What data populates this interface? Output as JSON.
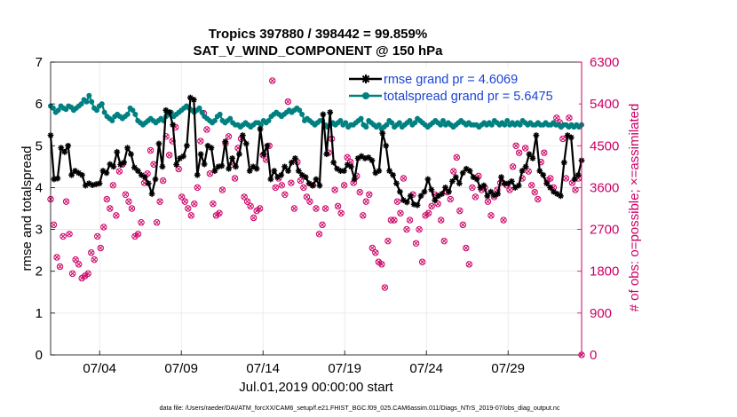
{
  "chart_data": {
    "type": "line",
    "title": "Tropics 397880 / 398442 = 99.859%",
    "subtitle": "SAT_V_WIND_COMPONENT @ 150 hPa",
    "xlabel": "Jul.01,2019 00:00:00 start",
    "ylabel": "rmse and totalspread",
    "y2label": "# of obs: o=possible; ×=assimilated",
    "xlim": [
      1,
      33.5
    ],
    "ylim": [
      0,
      7
    ],
    "y2lim": [
      0,
      6300
    ],
    "x_ticks": [
      4,
      9,
      14,
      19,
      24,
      29
    ],
    "x_tick_labels": [
      "07/04",
      "07/09",
      "07/14",
      "07/19",
      "07/24",
      "07/29"
    ],
    "y_ticks": [
      "0",
      "1",
      "2",
      "3",
      "4",
      "5",
      "6",
      "7"
    ],
    "y2_ticks": [
      "0",
      "900",
      "1800",
      "2700",
      "3600",
      "4500",
      "5400",
      "6300"
    ],
    "grid": true,
    "legend_position": "top-right",
    "colors": {
      "rmse": "#000000",
      "spread": "#008080",
      "obs": "#cc0066",
      "legend_text": "#1a44d6"
    },
    "series": [
      {
        "name": "rmse grand pr = 4.6069",
        "axis": "left",
        "y": [
          5.25,
          4.2,
          4.22,
          4.95,
          4.85,
          5.0,
          4.3,
          4.4,
          4.35,
          4.3,
          4.05,
          4.1,
          4.06,
          4.08,
          4.1,
          4.4,
          4.35,
          4.56,
          4.5,
          4.85,
          4.55,
          4.6,
          4.95,
          4.8,
          4.48,
          4.4,
          4.3,
          4.25,
          4.1,
          3.85,
          4.2,
          5.05,
          4.5,
          5.85,
          5.8,
          5.5,
          4.55,
          4.7,
          4.75,
          5.0,
          6.15,
          6.1,
          4.3,
          4.8,
          4.56,
          5.0,
          4.95,
          4.4,
          4.5,
          4.52,
          5.1,
          4.45,
          4.7,
          4.5,
          4.8,
          5.25,
          5.05,
          4.4,
          4.5,
          4.45,
          5.4,
          4.8,
          5.0,
          4.2,
          4.4,
          4.25,
          4.3,
          4.5,
          4.4,
          4.6,
          4.7,
          4.4,
          4.3,
          4.25,
          4.1,
          4.05,
          4.2,
          4.05,
          5.75,
          4.8,
          5.8,
          4.6,
          4.45,
          4.4,
          4.4,
          4.55,
          4.5,
          4.2,
          4.7,
          4.75,
          4.7,
          4.72,
          4.65,
          4.35,
          4.4,
          5.3,
          5.0,
          4.4,
          4.3,
          4.1,
          3.9,
          3.7,
          3.65,
          3.8,
          3.6,
          3.58,
          3.8,
          3.9,
          4.2,
          3.95,
          3.7,
          3.8,
          3.85,
          4.0,
          3.9,
          4.15,
          4.25,
          4.1,
          4.35,
          4.45,
          4.4,
          4.25,
          4.2,
          4.0,
          4.05,
          3.8,
          3.9,
          3.82,
          3.85,
          4.25,
          4.1,
          4.1,
          4.15,
          4.0,
          4.05,
          4.4,
          4.5,
          4.8,
          4.7,
          5.25,
          4.4,
          4.3,
          4.1,
          4.0,
          3.9,
          3.85,
          3.8,
          4.6,
          5.25,
          5.2,
          4.2,
          4.3,
          4.65
        ]
      },
      {
        "name": "totalspread grand pr = 5.6475",
        "axis": "left",
        "y": [
          5.95,
          5.9,
          5.8,
          5.85,
          5.95,
          5.9,
          5.87,
          5.95,
          5.92,
          5.85,
          5.9,
          5.95,
          6.0,
          6.1,
          6.05,
          6.2,
          6.05,
          5.9,
          5.85,
          5.95,
          6.0,
          5.8,
          5.7,
          5.65,
          5.6,
          5.7,
          5.75,
          5.7,
          5.65,
          5.7,
          5.75,
          5.9,
          5.85,
          5.75,
          5.6,
          5.55,
          5.5,
          5.55,
          5.6,
          5.65,
          5.6,
          5.55,
          5.6,
          5.65,
          5.6,
          5.7,
          5.75,
          5.8,
          5.7,
          5.75,
          5.8,
          5.85,
          5.9,
          5.95,
          5.9,
          5.85,
          5.8,
          5.85,
          5.9,
          5.8,
          5.7,
          5.65,
          5.6,
          5.55,
          5.6,
          5.7,
          5.75,
          5.6,
          5.55,
          5.6,
          5.65,
          5.55,
          5.5,
          5.5,
          5.45,
          5.5,
          5.55,
          5.5,
          5.45,
          5.5,
          5.55,
          5.55,
          5.5,
          5.6,
          5.55,
          5.6,
          5.7,
          5.75,
          5.8,
          5.75,
          5.7,
          5.75,
          5.8,
          5.85,
          5.8,
          5.85,
          5.9,
          5.85,
          5.75,
          5.6,
          5.65,
          5.6,
          5.55,
          5.5,
          5.55,
          5.6,
          5.6,
          5.5,
          5.45,
          5.5,
          5.55,
          5.5,
          5.55,
          5.6,
          5.5,
          5.55,
          5.45,
          5.5,
          5.5,
          5.55,
          5.6,
          5.65,
          5.5,
          5.45,
          5.6,
          5.55,
          5.5,
          5.45,
          5.5,
          5.4,
          5.45,
          5.5,
          5.6,
          5.55,
          5.45,
          5.5,
          5.55,
          5.45,
          5.5,
          5.55,
          5.6,
          5.5,
          5.55,
          5.65,
          5.6,
          5.55,
          5.5,
          5.45,
          5.5,
          5.55,
          5.6,
          5.55,
          5.5,
          5.6,
          5.5,
          5.55,
          5.5,
          5.45,
          5.5,
          5.55,
          5.6,
          5.55,
          5.5,
          5.55,
          5.5,
          5.5,
          5.5,
          5.45,
          5.5,
          5.55,
          5.5,
          5.55,
          5.5,
          5.6,
          5.55,
          5.5,
          5.55,
          5.5,
          5.6,
          5.5,
          5.55,
          5.5,
          5.55,
          5.5,
          5.6,
          5.55,
          5.5,
          5.55,
          5.5,
          5.5,
          5.55,
          5.5,
          5.5,
          5.55,
          5.5,
          5.5,
          5.55,
          5.5,
          5.5,
          5.45,
          5.5,
          5.5,
          5.45,
          5.5,
          5.45,
          5.5,
          5.45,
          5.5
        ]
      },
      {
        "name": "obs_possible",
        "axis": "right",
        "y": [
          3350,
          2800,
          2100,
          1900,
          2550,
          3300,
          2600,
          1750,
          2050,
          1950,
          1650,
          1700,
          1750,
          2200,
          2050,
          2550,
          2300,
          2750,
          3350,
          3150,
          3650,
          3000,
          3950,
          4100,
          3450,
          3300,
          3150,
          2550,
          2600,
          2850,
          3700,
          3900,
          4400,
          4100,
          2850,
          3300,
          3750,
          4700,
          4300,
          4600,
          4900,
          4000,
          3400,
          3300,
          3150,
          3000,
          3250,
          3600,
          4600,
          5200,
          4850,
          3900,
          3250,
          3000,
          3050,
          3550,
          4550,
          4700,
          4100,
          3800,
          4450,
          4650,
          3400,
          3300,
          3200,
          2950,
          3100,
          3150,
          4300,
          4200,
          4500,
          5900,
          3600,
          3800,
          3650,
          3450,
          5450,
          3700,
          3150,
          4150,
          3750,
          3600,
          3400,
          3300,
          3650,
          3150,
          2600,
          2800,
          3150,
          4350,
          4650,
          3550,
          3200,
          3050,
          3650,
          4250,
          4150,
          3700,
          3850,
          3500,
          3000,
          3300,
          3450,
          2300,
          2200,
          2000,
          1950,
          1450,
          2450,
          2900,
          2900,
          3300,
          3050,
          3800,
          2700,
          2900,
          3450,
          2400,
          2700,
          2000,
          3000,
          3050,
          3200,
          3450,
          3250,
          2900,
          2450,
          3500,
          3350,
          3950,
          4250,
          3100,
          2800,
          2300,
          1950,
          3600,
          3400,
          3850,
          3550,
          3600,
          3300,
          3000,
          3400,
          3550,
          3700,
          2900,
          3650,
          3550,
          4050,
          4500,
          4350,
          3800,
          4450,
          3950,
          3650,
          3500,
          3350,
          4150,
          4350,
          3750,
          3800,
          3600,
          5100,
          5000,
          4650,
          3800,
          5100,
          3700,
          3550,
          3800,
          0
        ]
      },
      {
        "name": "obs_assimilated",
        "axis": "right",
        "y": [
          3350,
          2800,
          2100,
          1900,
          2550,
          3300,
          2600,
          1750,
          2050,
          1950,
          1650,
          1700,
          1750,
          2200,
          2050,
          2550,
          2300,
          2750,
          3350,
          3150,
          3650,
          3000,
          3950,
          4100,
          3450,
          3300,
          3150,
          2550,
          2600,
          2850,
          3700,
          3900,
          4400,
          4100,
          2850,
          3300,
          3750,
          4700,
          4300,
          4600,
          4900,
          4000,
          3400,
          3300,
          3150,
          3000,
          3250,
          3600,
          4600,
          5200,
          4850,
          3900,
          3250,
          3000,
          3050,
          3550,
          4550,
          4700,
          4100,
          3800,
          4450,
          4650,
          3400,
          3300,
          3200,
          2950,
          3100,
          3150,
          4300,
          4200,
          4500,
          5900,
          3600,
          3800,
          3650,
          3450,
          5450,
          3700,
          3150,
          4150,
          3750,
          3600,
          3400,
          3300,
          3650,
          3150,
          2600,
          2800,
          3150,
          4350,
          4650,
          3550,
          3200,
          3050,
          3650,
          4250,
          4150,
          3700,
          3850,
          3500,
          3000,
          3300,
          3450,
          2300,
          2200,
          2000,
          1950,
          1450,
          2450,
          2900,
          2900,
          3300,
          3050,
          3800,
          2700,
          2900,
          3450,
          2400,
          2700,
          2000,
          3000,
          3050,
          3200,
          3450,
          3250,
          2900,
          2450,
          3500,
          3350,
          3950,
          4250,
          3100,
          2800,
          2300,
          1950,
          3600,
          3400,
          3850,
          3550,
          3600,
          3300,
          3000,
          3400,
          3550,
          3700,
          2900,
          3650,
          3550,
          4050,
          4500,
          4350,
          3800,
          4450,
          3950,
          3650,
          3500,
          3350,
          4150,
          4350,
          3750,
          3800,
          3600,
          5100,
          5000,
          4650,
          3800,
          5100,
          3700,
          3550,
          3800,
          0
        ]
      }
    ]
  },
  "footer_text": "data file: /Users/raeder/DAI/ATM_forcXX/CAM6_setup/f.e21.FHIST_BGC.f09_025.CAM6assim.011/Diags_NTrS_2019-07/obs_diag_output.nc"
}
